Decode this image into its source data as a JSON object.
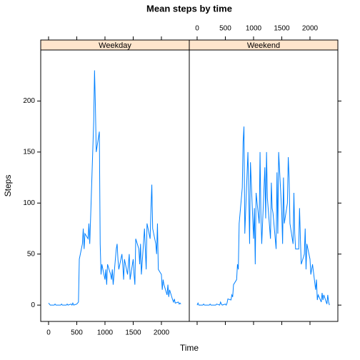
{
  "chart_data": {
    "type": "line",
    "title": "Mean steps by time",
    "xlabel": "Time",
    "ylabel": "Steps",
    "color": "#0080ff",
    "xlim": [
      -139,
      2494
    ],
    "ylim": [
      -16,
      250
    ],
    "xticks": [
      0,
      500,
      1000,
      1500,
      2000
    ],
    "yticks": [
      0,
      50,
      100,
      150,
      200
    ],
    "x": [
      0,
      15,
      30,
      45,
      100,
      115,
      130,
      145,
      200,
      215,
      230,
      245,
      300,
      315,
      330,
      345,
      400,
      415,
      430,
      445,
      500,
      515,
      530,
      545,
      600,
      615,
      630,
      645,
      700,
      715,
      730,
      745,
      800,
      815,
      830,
      845,
      900,
      915,
      930,
      945,
      1000,
      1015,
      1030,
      1045,
      1100,
      1115,
      1130,
      1145,
      1200,
      1215,
      1230,
      1245,
      1300,
      1315,
      1330,
      1345,
      1400,
      1415,
      1430,
      1445,
      1500,
      1515,
      1530,
      1545,
      1600,
      1615,
      1630,
      1645,
      1700,
      1715,
      1730,
      1745,
      1800,
      1815,
      1830,
      1845,
      1900,
      1915,
      1930,
      1945,
      2000,
      2015,
      2030,
      2045,
      2100,
      2115,
      2130,
      2145,
      2200,
      2215,
      2230,
      2245,
      2300,
      2315,
      2330,
      2345
    ],
    "panels": [
      {
        "name": "Weekday",
        "values": [
          2,
          1,
          0,
          0,
          0,
          1,
          0,
          0,
          0,
          0,
          1,
          0,
          0,
          0,
          1,
          0,
          1,
          0,
          2,
          0,
          1,
          2,
          3,
          45,
          60,
          75,
          55,
          70,
          65,
          80,
          60,
          85,
          180,
          230,
          195,
          150,
          170,
          60,
          30,
          40,
          25,
          35,
          20,
          40,
          30,
          25,
          35,
          20,
          55,
          60,
          45,
          35,
          50,
          40,
          25,
          45,
          30,
          40,
          50,
          25,
          45,
          30,
          20,
          65,
          55,
          40,
          60,
          30,
          75,
          55,
          35,
          80,
          65,
          95,
          118,
          75,
          60,
          50,
          80,
          35,
          30,
          15,
          25,
          20,
          10,
          20,
          8,
          15,
          5,
          3,
          6,
          2,
          3,
          1,
          2,
          1
        ]
      },
      {
        "name": "Weekend",
        "values": [
          0,
          2,
          0,
          0,
          0,
          1,
          0,
          0,
          0,
          0,
          1,
          0,
          0,
          0,
          0,
          1,
          0,
          3,
          1,
          0,
          1,
          0,
          2,
          6,
          5,
          10,
          8,
          20,
          25,
          40,
          35,
          80,
          115,
          160,
          175,
          70,
          150,
          110,
          60,
          140,
          65,
          95,
          40,
          110,
          80,
          150,
          90,
          60,
          135,
          85,
          150,
          105,
          65,
          120,
          95,
          90,
          55,
          130,
          70,
          150,
          90,
          60,
          125,
          80,
          100,
          145,
          125,
          80,
          60,
          110,
          70,
          55,
          55,
          95,
          65,
          40,
          50,
          75,
          35,
          60,
          45,
          30,
          35,
          40,
          15,
          25,
          5,
          10,
          3,
          12,
          5,
          10,
          1,
          10,
          3,
          0
        ]
      }
    ]
  }
}
